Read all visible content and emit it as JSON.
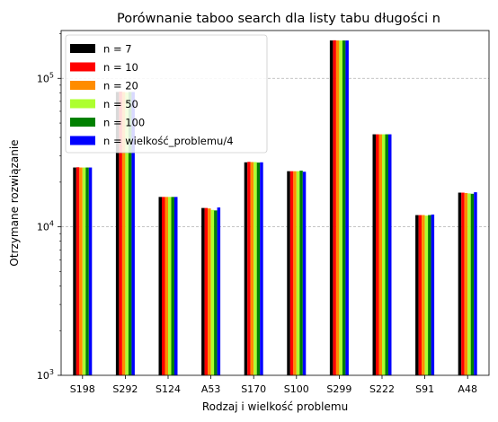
{
  "chart_data": {
    "type": "bar",
    "title": "Porównanie taboo search dla listy tabu długości n",
    "xlabel": "Rodzaj i wielkość problemu",
    "ylabel": "Otrzymane rozwiązanie",
    "yscale": "log",
    "ylim": [
      1000,
      210000
    ],
    "grid": "y-major-dashed",
    "legend_position": "top-left",
    "yticks": [
      {
        "value": 1000,
        "base": "10",
        "exp": "3"
      },
      {
        "value": 10000,
        "base": "10",
        "exp": "4"
      },
      {
        "value": 100000,
        "base": "10",
        "exp": "5"
      }
    ],
    "categories": [
      "S198",
      "S292",
      "S124",
      "A53",
      "S170",
      "S100",
      "S299",
      "S222",
      "S91",
      "A48"
    ],
    "series": [
      {
        "name": "n = 7",
        "color": "#000000",
        "values": [
          25100,
          81000,
          15900,
          13400,
          27200,
          23700,
          180000,
          42000,
          12000,
          17000
        ]
      },
      {
        "name": "n = 10",
        "color": "#ff0000",
        "values": [
          25200,
          81500,
          15900,
          13400,
          27400,
          23700,
          180500,
          42000,
          12000,
          17000
        ]
      },
      {
        "name": "n = 20",
        "color": "#ff8c00",
        "values": [
          25100,
          81000,
          15900,
          13300,
          27300,
          23700,
          180000,
          42000,
          12000,
          16900
        ]
      },
      {
        "name": "n = 50",
        "color": "#adff2f",
        "values": [
          25100,
          80500,
          15900,
          13000,
          27300,
          23700,
          180000,
          42000,
          11900,
          16800
        ]
      },
      {
        "name": "n = 100",
        "color": "#008000",
        "values": [
          25100,
          81000,
          15900,
          12900,
          27100,
          23900,
          180000,
          42000,
          12000,
          16700
        ]
      },
      {
        "name": "n = wielkość_problemu/4",
        "color": "#0000ff",
        "values": [
          25100,
          81000,
          15900,
          13500,
          27200,
          23500,
          180000,
          42000,
          12100,
          17100
        ]
      }
    ]
  }
}
